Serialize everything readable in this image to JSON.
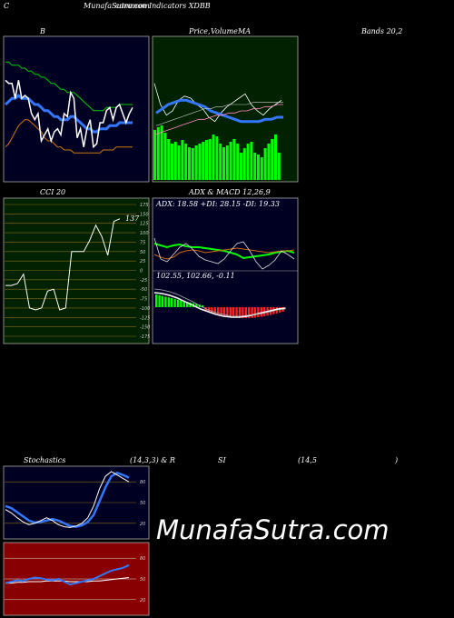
{
  "header": {
    "corner": "C",
    "title": "MunafaSutra.com",
    "subtitle": "common Indicators XDBB"
  },
  "panels": {
    "bollinger": {
      "title": "B",
      "title2": "Bands 20,2"
    },
    "price": {
      "title": "Price,",
      "title2": "Volume",
      "title3": "MA"
    },
    "cci": {
      "title": "CCI 20",
      "value_label": "137"
    },
    "adx": {
      "title": "ADX  & MACD 12,26,9",
      "adx_line": "ADX: 18.58  +DI: 28.15 -DI: 19.33",
      "macd_line": "102.55,   102.66,   -0.11"
    },
    "stoch": {
      "title": "Stochastics",
      "params": "(14,3,3) & R",
      "rsi": "SI",
      "rsi_params": "(14,5",
      "close": ")"
    }
  },
  "watermark": "MunafaSutra.com",
  "colors": {
    "bg": "#000000",
    "bollinger_bg": "#000022",
    "price_bg": "#002200",
    "cci_bg": "#002200",
    "adx_bg": "#000022",
    "stoch_bg": "#000022",
    "rsi_bg": "#880000",
    "green": "#00ff00",
    "blue": "#3377ff",
    "orange": "#cc7711",
    "white": "#ffffff"
  },
  "chart_data": [
    {
      "type": "line",
      "name_hint": "bollinger",
      "series": [
        {
          "values": [
            112,
            111,
            111,
            106,
            112,
            106,
            107,
            106,
            101,
            99,
            101,
            92,
            94,
            96,
            92,
            95,
            96,
            94,
            101,
            100,
            108,
            106,
            93,
            96,
            90,
            96,
            99,
            90,
            91,
            98,
            98,
            102,
            103,
            99,
            103,
            104,
            101,
            98,
            101,
            103
          ]
        },
        {
          "values": [
            104,
            105,
            106,
            106,
            107,
            106,
            106,
            106,
            105,
            104,
            104,
            103,
            102,
            102,
            101,
            100,
            100,
            99,
            99,
            99,
            100,
            100,
            99,
            98,
            97,
            96,
            96,
            95,
            95,
            96,
            96,
            96,
            97,
            97,
            97,
            98,
            98,
            98,
            98,
            98
          ]
        },
        {
          "values": [
            118,
            118,
            117,
            117,
            117,
            116,
            116,
            115,
            115,
            114,
            114,
            113,
            113,
            112,
            111,
            111,
            110,
            109,
            109,
            108,
            108,
            108,
            107,
            106,
            105,
            104,
            103,
            102,
            102,
            102,
            102,
            103,
            103,
            103,
            103,
            104,
            104,
            104,
            104,
            104
          ]
        },
        {
          "values": [
            90,
            91,
            93,
            95,
            97,
            98,
            99,
            99,
            98,
            97,
            96,
            95,
            93,
            92,
            92,
            91,
            90,
            90,
            89,
            89,
            89,
            88,
            88,
            88,
            88,
            88,
            88,
            88,
            88,
            88,
            89,
            89,
            89,
            89,
            90,
            90,
            90,
            90,
            90,
            90
          ]
        }
      ]
    },
    {
      "type": "bar",
      "name_hint": "cci",
      "values": [
        -40,
        -40,
        -35,
        -10,
        -100,
        -105,
        -100,
        -55,
        -50,
        -105,
        -100,
        50,
        50,
        50,
        80,
        120,
        90,
        40,
        130,
        137
      ],
      "ylim": [
        -175,
        175
      ],
      "ticks": [
        175,
        150,
        125,
        100,
        75,
        50,
        25,
        0,
        -25,
        -50,
        -75,
        -100,
        -125,
        -150,
        -175
      ]
    },
    {
      "type": "line",
      "name_hint": "stochastic_rsi",
      "stoch_ticks": [
        80,
        50,
        20
      ],
      "rsi_ticks": [
        80,
        50,
        20
      ]
    }
  ]
}
